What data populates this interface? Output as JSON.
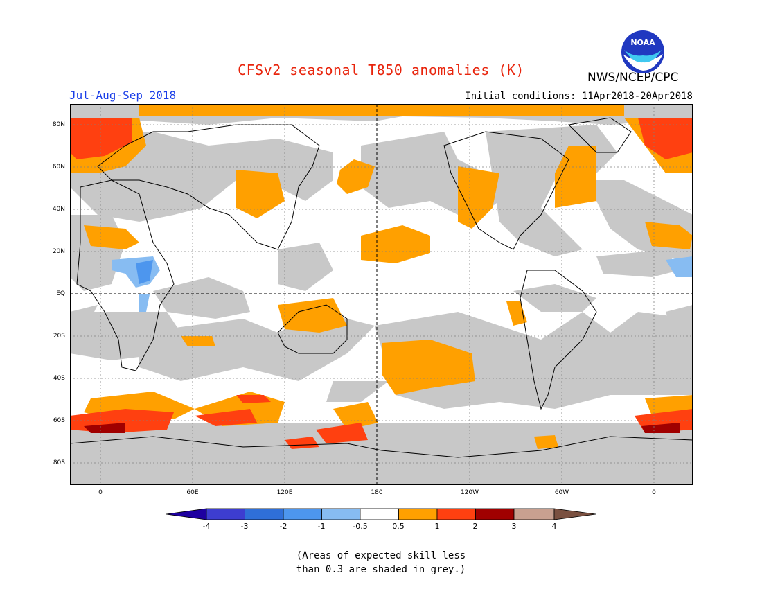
{
  "title": "CFSv2 seasonal T850 anomalies (K)",
  "agency": "NWS/NCEP/CPC",
  "season": "Jul-Aug-Sep 2018",
  "initial_conditions": "Initial conditions: 11Apr2018-20Apr2018",
  "logo_text": "NOAA",
  "lat_labels": [
    "80N",
    "60N",
    "40N",
    "20N",
    "EQ",
    "20S",
    "40S",
    "60S",
    "80S"
  ],
  "lon_labels": [
    "0",
    "60E",
    "120E",
    "180",
    "120W",
    "60W",
    "0"
  ],
  "colorbar": {
    "labels": [
      "-4",
      "-3",
      "-2",
      "-1",
      "-0.5",
      "0.5",
      "1",
      "2",
      "3",
      "4"
    ],
    "colors": [
      "#1e00a0",
      "#3d3dd0",
      "#2f6fd8",
      "#4d96ee",
      "#87bcf2",
      "#ffffff",
      "#ffa000",
      "#ff4010",
      "#a00000",
      "#c8a090",
      "#7a5040"
    ]
  },
  "note_line1": "(Areas of expected skill less",
  "note_line2": "than 0.3 are shaded in grey.)",
  "colors": {
    "grey": "#c8c8c8",
    "orange": "#ffa000",
    "red": "#ff4010",
    "darkred": "#a00000",
    "lightblue": "#87bcf2",
    "blue": "#4d96ee",
    "title": "#e8240c",
    "season": "#1a3ee8"
  }
}
